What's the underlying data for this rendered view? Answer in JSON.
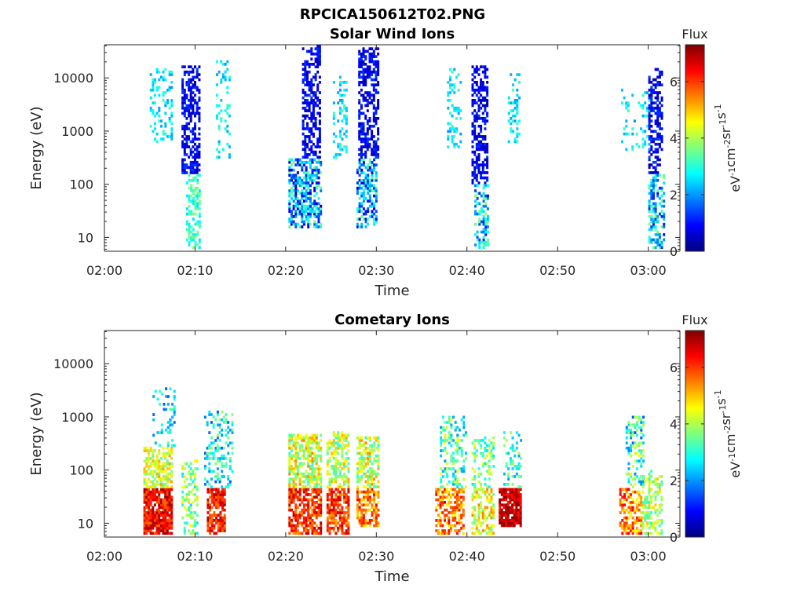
{
  "figure_title": "RPCICA150612T02.PNG",
  "colorscale": {
    "stops": [
      "#00007f",
      "#0000ff",
      "#007fff",
      "#00ffff",
      "#7fff7f",
      "#ffff00",
      "#ff7f00",
      "#ff0000",
      "#7f0000"
    ],
    "label": "Flux",
    "unit_parts": [
      "eV",
      "-1",
      "cm",
      "-2",
      "sr",
      "-1",
      "s",
      "-1"
    ],
    "ticks": [
      0,
      2,
      4,
      6
    ],
    "range": [
      0,
      7.3
    ]
  },
  "chart_data": [
    {
      "type": "heatmap",
      "title": "Solar Wind Ions",
      "xlabel": "Time",
      "ylabel": "Energy (eV)",
      "x_ticks": [
        "02:00",
        "02:10",
        "02:20",
        "02:30",
        "02:40",
        "02:50",
        "03:00"
      ],
      "x_range_minutes": [
        0,
        63.5
      ],
      "y_scale": "log",
      "y_ticks": [
        10,
        100,
        1000,
        10000
      ],
      "y_range": [
        5.5,
        42000
      ],
      "colorbar": {
        "label": "Flux",
        "range": [
          0,
          7.3
        ],
        "ticks": [
          0,
          2,
          4,
          6
        ]
      },
      "clusters": [
        {
          "t": [
            5.0,
            7.5
          ],
          "e": [
            600,
            14000
          ],
          "flux": [
            2.0,
            3.2
          ],
          "density": 0.3
        },
        {
          "t": [
            8.5,
            10.5
          ],
          "e": [
            150,
            16000
          ],
          "flux": [
            0.3,
            1.4
          ],
          "density": 0.55
        },
        {
          "t": [
            9.0,
            10.5
          ],
          "e": [
            6,
            150
          ],
          "flux": [
            2.5,
            3.8
          ],
          "density": 0.45
        },
        {
          "t": [
            12.3,
            13.8
          ],
          "e": [
            300,
            20000
          ],
          "flux": [
            2.0,
            3.2
          ],
          "density": 0.22
        },
        {
          "t": [
            20.3,
            23.8
          ],
          "e": [
            15,
            300
          ],
          "flux": [
            0.3,
            3.6
          ],
          "density": 0.6
        },
        {
          "t": [
            21.8,
            23.8
          ],
          "e": [
            300,
            40000
          ],
          "flux": [
            0.3,
            1.3
          ],
          "density": 0.55
        },
        {
          "t": [
            25.2,
            26.8
          ],
          "e": [
            300,
            10000
          ],
          "flux": [
            2.0,
            3.2
          ],
          "density": 0.25
        },
        {
          "t": [
            27.8,
            30.0
          ],
          "e": [
            15,
            300
          ],
          "flux": [
            0.5,
            3.5
          ],
          "density": 0.55
        },
        {
          "t": [
            28.0,
            30.2
          ],
          "e": [
            300,
            35000
          ],
          "flux": [
            0.3,
            1.4
          ],
          "density": 0.55
        },
        {
          "t": [
            37.8,
            39.2
          ],
          "e": [
            400,
            15000
          ],
          "flux": [
            2.0,
            3.2
          ],
          "density": 0.25
        },
        {
          "t": [
            40.5,
            42.3
          ],
          "e": [
            100,
            16000
          ],
          "flux": [
            0.3,
            1.3
          ],
          "density": 0.55
        },
        {
          "t": [
            40.8,
            42.3
          ],
          "e": [
            6,
            100
          ],
          "flux": [
            1.0,
            3.8
          ],
          "density": 0.45
        },
        {
          "t": [
            44.5,
            45.8
          ],
          "e": [
            600,
            12000
          ],
          "flux": [
            2.0,
            3.2
          ],
          "density": 0.25
        },
        {
          "t": [
            57.0,
            60.0
          ],
          "e": [
            400,
            6000
          ],
          "flux": [
            2.0,
            3.2
          ],
          "density": 0.18
        },
        {
          "t": [
            60.0,
            61.5
          ],
          "e": [
            150,
            14000
          ],
          "flux": [
            0.3,
            1.4
          ],
          "density": 0.5
        },
        {
          "t": [
            60.0,
            61.8
          ],
          "e": [
            6,
            150
          ],
          "flux": [
            1.0,
            3.8
          ],
          "density": 0.45
        }
      ]
    },
    {
      "type": "heatmap",
      "title": "Cometary Ions",
      "xlabel": "Time",
      "ylabel": "Energy (eV)",
      "x_ticks": [
        "02:00",
        "02:10",
        "02:20",
        "02:30",
        "02:40",
        "02:50",
        "03:00"
      ],
      "x_range_minutes": [
        0,
        63.5
      ],
      "y_scale": "log",
      "y_ticks": [
        10,
        100,
        1000,
        10000
      ],
      "y_range": [
        5.5,
        42000
      ],
      "colorbar": {
        "label": "Flux",
        "range": [
          0,
          7.3
        ],
        "ticks": [
          0,
          2,
          4,
          6
        ]
      },
      "clusters": [
        {
          "t": [
            4.3,
            7.3
          ],
          "e": [
            6,
            45
          ],
          "flux": [
            5.6,
            7.2
          ],
          "density": 0.85
        },
        {
          "t": [
            4.3,
            7.3
          ],
          "e": [
            45,
            250
          ],
          "flux": [
            3.3,
            5.3
          ],
          "density": 0.65
        },
        {
          "t": [
            5.3,
            7.8
          ],
          "e": [
            250,
            3500
          ],
          "flux": [
            1.5,
            3.5
          ],
          "density": 0.2
        },
        {
          "t": [
            8.5,
            10.3
          ],
          "e": [
            6,
            150
          ],
          "flux": [
            2.5,
            4.8
          ],
          "density": 0.45
        },
        {
          "t": [
            11.3,
            13.3
          ],
          "e": [
            6,
            45
          ],
          "flux": [
            5.5,
            7.0
          ],
          "density": 0.75
        },
        {
          "t": [
            11.0,
            14.0
          ],
          "e": [
            45,
            1200
          ],
          "flux": [
            1.5,
            4.0
          ],
          "density": 0.3
        },
        {
          "t": [
            20.3,
            23.8
          ],
          "e": [
            6,
            45
          ],
          "flux": [
            5.2,
            7.0
          ],
          "density": 0.7
        },
        {
          "t": [
            20.3,
            23.8
          ],
          "e": [
            45,
            450
          ],
          "flux": [
            3.0,
            5.5
          ],
          "density": 0.65
        },
        {
          "t": [
            24.5,
            27.0
          ],
          "e": [
            6,
            45
          ],
          "flux": [
            5.2,
            6.8
          ],
          "density": 0.7
        },
        {
          "t": [
            24.5,
            27.0
          ],
          "e": [
            45,
            500
          ],
          "flux": [
            3.0,
            5.2
          ],
          "density": 0.55
        },
        {
          "t": [
            27.8,
            30.2
          ],
          "e": [
            8,
            45
          ],
          "flux": [
            4.5,
            6.5
          ],
          "density": 0.65
        },
        {
          "t": [
            27.8,
            30.2
          ],
          "e": [
            45,
            400
          ],
          "flux": [
            3.0,
            5.5
          ],
          "density": 0.6
        },
        {
          "t": [
            36.5,
            39.5
          ],
          "e": [
            6,
            45
          ],
          "flux": [
            4.5,
            6.5
          ],
          "density": 0.6
        },
        {
          "t": [
            37.0,
            39.8
          ],
          "e": [
            45,
            1000
          ],
          "flux": [
            2.0,
            4.5
          ],
          "density": 0.35
        },
        {
          "t": [
            40.5,
            43.0
          ],
          "e": [
            6,
            45
          ],
          "flux": [
            3.5,
            5.5
          ],
          "density": 0.55
        },
        {
          "t": [
            40.5,
            43.0
          ],
          "e": [
            45,
            400
          ],
          "flux": [
            2.5,
            4.5
          ],
          "density": 0.4
        },
        {
          "t": [
            43.5,
            46.0
          ],
          "e": [
            8,
            45
          ],
          "flux": [
            6.2,
            7.3
          ],
          "density": 0.85
        },
        {
          "t": [
            44.0,
            46.0
          ],
          "e": [
            45,
            500
          ],
          "flux": [
            2.0,
            4.0
          ],
          "density": 0.3
        },
        {
          "t": [
            56.8,
            59.3
          ],
          "e": [
            6,
            45
          ],
          "flux": [
            4.5,
            6.5
          ],
          "density": 0.55
        },
        {
          "t": [
            57.5,
            59.5
          ],
          "e": [
            45,
            1000
          ],
          "flux": [
            1.5,
            4.5
          ],
          "density": 0.35
        },
        {
          "t": [
            59.3,
            61.5
          ],
          "e": [
            6,
            100
          ],
          "flux": [
            3.0,
            5.0
          ],
          "density": 0.45
        }
      ]
    }
  ]
}
